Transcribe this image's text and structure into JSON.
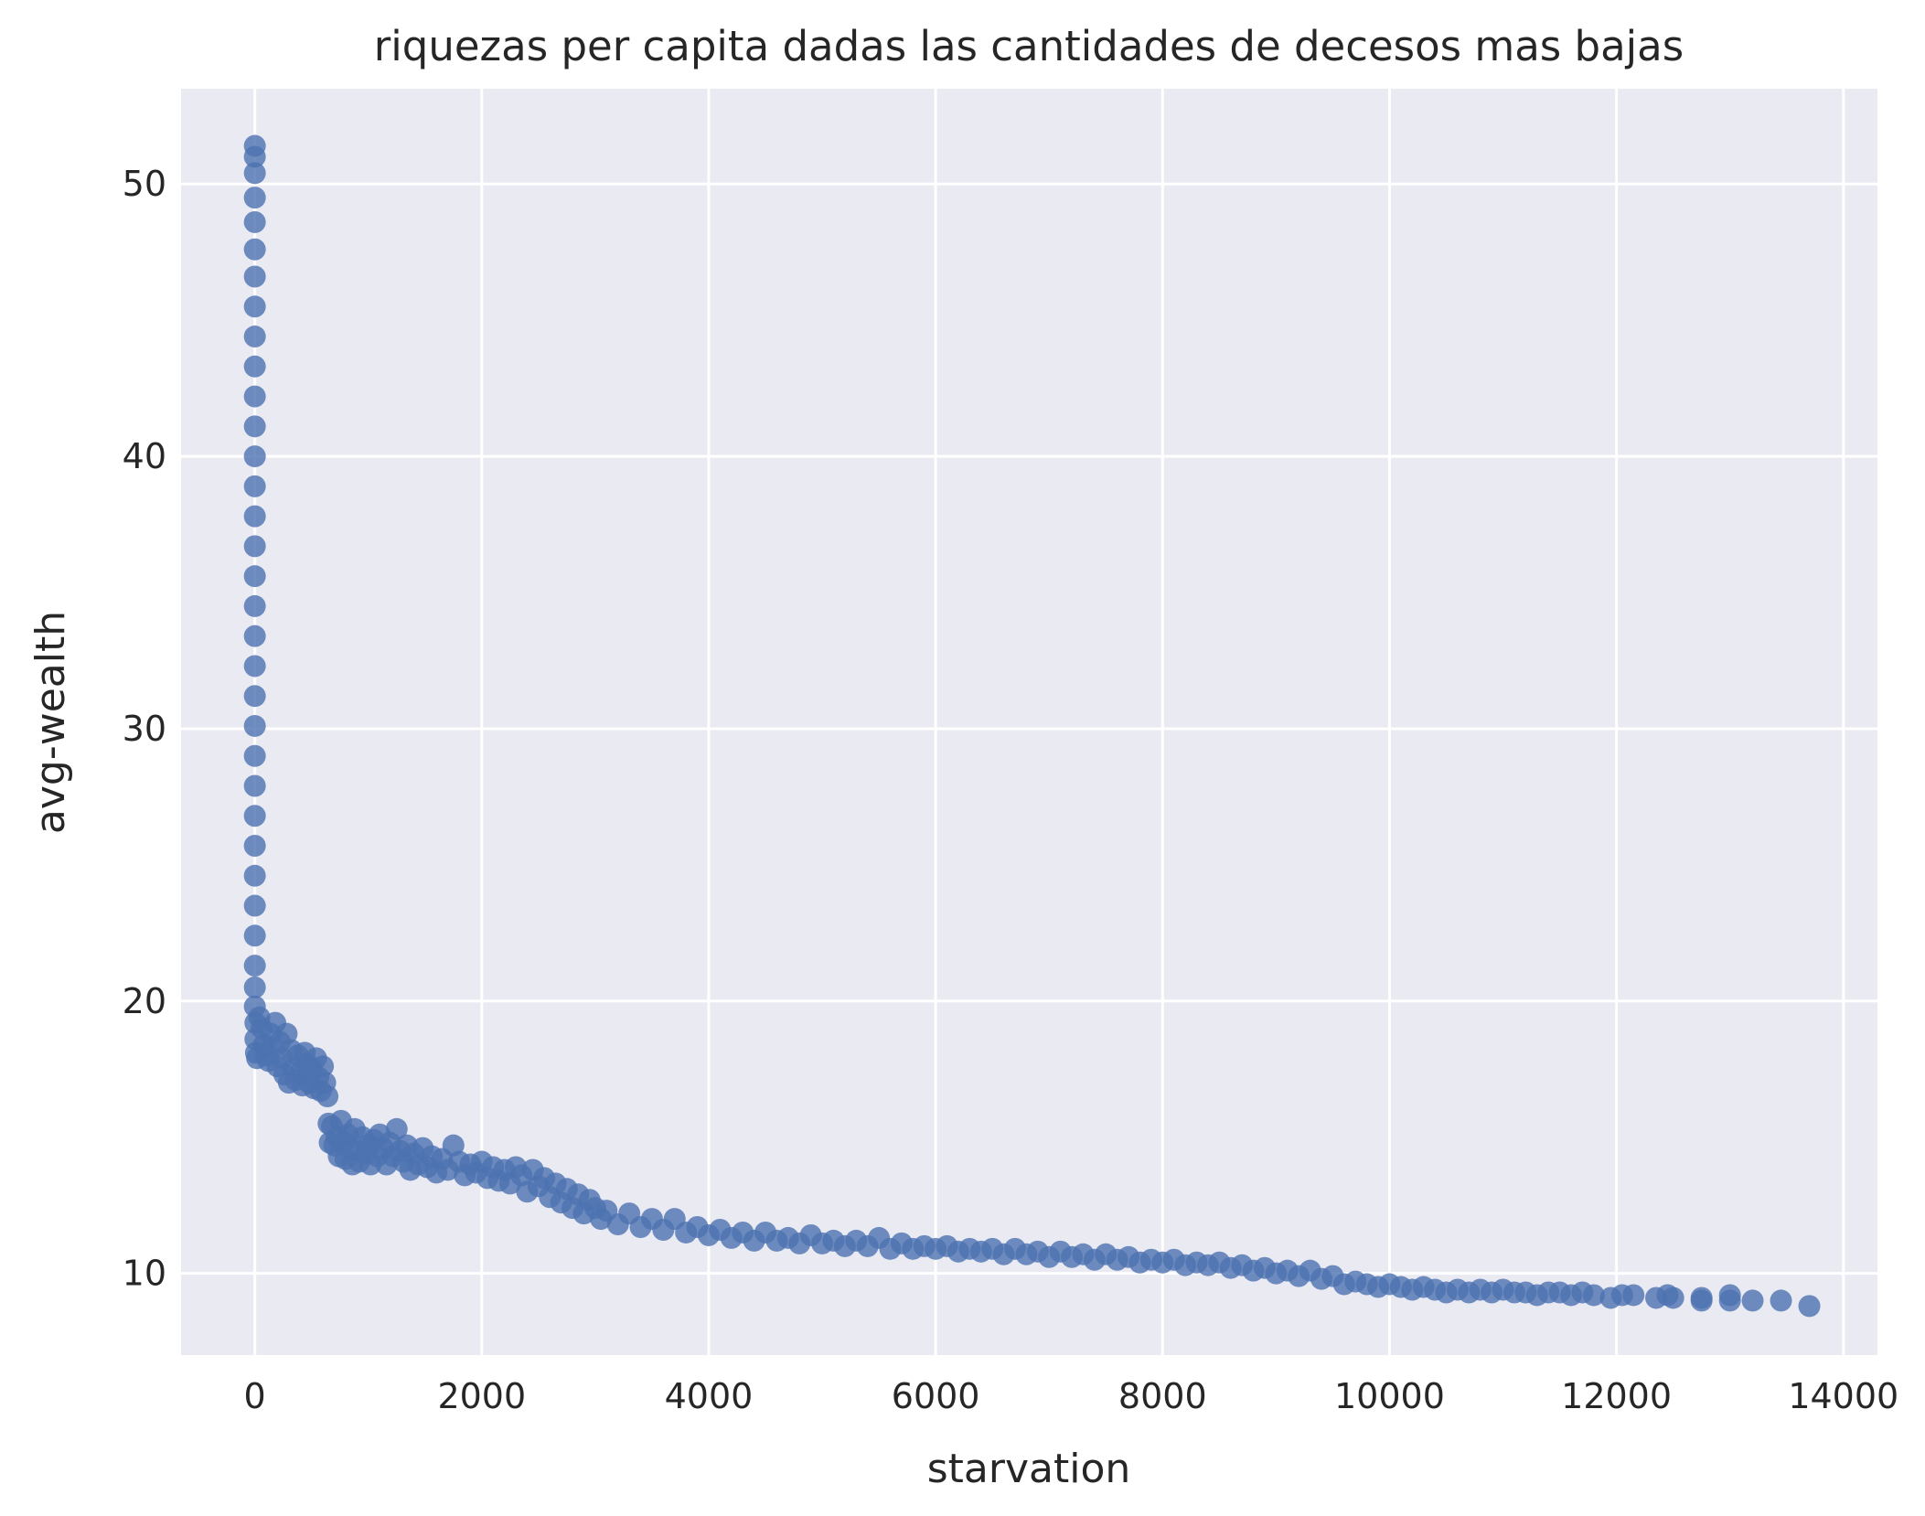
{
  "chart_data": {
    "type": "scatter",
    "title": "riquezas per capita dadas las cantidades de decesos mas bajas",
    "xlabel": "starvation",
    "ylabel": "avg-wealth",
    "xlim": [
      -650,
      14300
    ],
    "ylim": [
      7,
      53.5
    ],
    "xticks": [
      0,
      2000,
      4000,
      6000,
      8000,
      10000,
      12000,
      14000
    ],
    "yticks": [
      10,
      20,
      30,
      40,
      50
    ],
    "xtick_labels": [
      "0",
      "2000",
      "4000",
      "6000",
      "8000",
      "10000",
      "12000",
      "14000"
    ],
    "ytick_labels": [
      "10",
      "20",
      "30",
      "40",
      "50"
    ],
    "grid": true,
    "legend": "none",
    "colors": {
      "background": "#eaeaf2",
      "grid": "#ffffff",
      "marker": "#4c72b0",
      "text": "#262626"
    },
    "series": [
      {
        "points": [
          [
            0,
            51.4
          ],
          [
            0,
            51.0
          ],
          [
            0,
            50.4
          ],
          [
            0,
            49.5
          ],
          [
            0,
            48.6
          ],
          [
            0,
            47.6
          ],
          [
            0,
            46.6
          ],
          [
            0,
            45.5
          ],
          [
            0,
            44.4
          ],
          [
            0,
            43.3
          ],
          [
            0,
            42.2
          ],
          [
            0,
            41.1
          ],
          [
            0,
            40.0
          ],
          [
            0,
            38.9
          ],
          [
            0,
            37.8
          ],
          [
            0,
            36.7
          ],
          [
            0,
            35.6
          ],
          [
            0,
            34.5
          ],
          [
            0,
            33.4
          ],
          [
            0,
            32.3
          ],
          [
            0,
            31.2
          ],
          [
            0,
            30.1
          ],
          [
            0,
            29.0
          ],
          [
            0,
            27.9
          ],
          [
            0,
            26.8
          ],
          [
            0,
            25.7
          ],
          [
            0,
            24.6
          ],
          [
            0,
            23.5
          ],
          [
            0,
            22.4
          ],
          [
            0,
            21.3
          ],
          [
            0,
            20.5
          ],
          [
            0,
            19.8
          ],
          [
            5,
            19.2
          ],
          [
            5,
            18.6
          ],
          [
            10,
            18.1
          ],
          [
            20,
            17.9
          ],
          [
            40,
            19.4
          ],
          [
            60,
            19.0
          ],
          [
            80,
            18.4
          ],
          [
            100,
            18.0
          ],
          [
            120,
            17.8
          ],
          [
            140,
            18.8
          ],
          [
            160,
            18.3
          ],
          [
            180,
            19.2
          ],
          [
            200,
            17.6
          ],
          [
            220,
            18.5
          ],
          [
            240,
            17.9
          ],
          [
            260,
            17.3
          ],
          [
            280,
            18.8
          ],
          [
            300,
            17.0
          ],
          [
            320,
            18.2
          ],
          [
            340,
            17.5
          ],
          [
            360,
            17.1
          ],
          [
            380,
            18.0
          ],
          [
            400,
            17.4
          ],
          [
            420,
            16.9
          ],
          [
            440,
            18.1
          ],
          [
            460,
            17.7
          ],
          [
            480,
            17.0
          ],
          [
            500,
            17.5
          ],
          [
            520,
            16.8
          ],
          [
            540,
            17.9
          ],
          [
            560,
            17.2
          ],
          [
            580,
            16.7
          ],
          [
            600,
            17.6
          ],
          [
            620,
            17.0
          ],
          [
            640,
            16.5
          ],
          [
            650,
            15.5
          ],
          [
            660,
            14.8
          ],
          [
            680,
            15.4
          ],
          [
            700,
            14.7
          ],
          [
            720,
            15.0
          ],
          [
            740,
            14.3
          ],
          [
            760,
            15.6
          ],
          [
            780,
            14.8
          ],
          [
            800,
            14.2
          ],
          [
            820,
            15.1
          ],
          [
            840,
            14.6
          ],
          [
            860,
            14.0
          ],
          [
            880,
            15.3
          ],
          [
            900,
            14.5
          ],
          [
            920,
            14.1
          ],
          [
            950,
            15.0
          ],
          [
            980,
            14.4
          ],
          [
            1000,
            14.7
          ],
          [
            1020,
            14.0
          ],
          [
            1050,
            14.9
          ],
          [
            1080,
            14.3
          ],
          [
            1100,
            15.1
          ],
          [
            1130,
            14.6
          ],
          [
            1160,
            14.0
          ],
          [
            1190,
            14.8
          ],
          [
            1220,
            14.3
          ],
          [
            1250,
            15.3
          ],
          [
            1280,
            14.5
          ],
          [
            1310,
            14.1
          ],
          [
            1340,
            14.7
          ],
          [
            1370,
            13.8
          ],
          [
            1400,
            14.4
          ],
          [
            1440,
            14.0
          ],
          [
            1480,
            14.6
          ],
          [
            1520,
            13.9
          ],
          [
            1560,
            14.3
          ],
          [
            1600,
            13.7
          ],
          [
            1650,
            14.2
          ],
          [
            1700,
            13.8
          ],
          [
            1750,
            14.7
          ],
          [
            1800,
            14.1
          ],
          [
            1850,
            13.6
          ],
          [
            1900,
            14.0
          ],
          [
            1950,
            13.7
          ],
          [
            2000,
            14.1
          ],
          [
            2050,
            13.5
          ],
          [
            2100,
            13.9
          ],
          [
            2150,
            13.4
          ],
          [
            2200,
            13.8
          ],
          [
            2250,
            13.3
          ],
          [
            2300,
            13.9
          ],
          [
            2350,
            13.6
          ],
          [
            2400,
            13.0
          ],
          [
            2450,
            13.8
          ],
          [
            2500,
            13.2
          ],
          [
            2550,
            13.5
          ],
          [
            2600,
            12.8
          ],
          [
            2650,
            13.3
          ],
          [
            2700,
            12.6
          ],
          [
            2750,
            13.1
          ],
          [
            2800,
            12.4
          ],
          [
            2850,
            12.9
          ],
          [
            2900,
            12.2
          ],
          [
            2950,
            12.7
          ],
          [
            3000,
            12.4
          ],
          [
            3050,
            12.0
          ],
          [
            3100,
            12.3
          ],
          [
            3200,
            11.8
          ],
          [
            3300,
            12.2
          ],
          [
            3400,
            11.7
          ],
          [
            3500,
            12.0
          ],
          [
            3600,
            11.6
          ],
          [
            3700,
            12.0
          ],
          [
            3800,
            11.5
          ],
          [
            3900,
            11.7
          ],
          [
            4000,
            11.4
          ],
          [
            4100,
            11.6
          ],
          [
            4200,
            11.3
          ],
          [
            4300,
            11.5
          ],
          [
            4400,
            11.2
          ],
          [
            4500,
            11.5
          ],
          [
            4600,
            11.2
          ],
          [
            4700,
            11.3
          ],
          [
            4800,
            11.1
          ],
          [
            4900,
            11.4
          ],
          [
            5000,
            11.1
          ],
          [
            5100,
            11.2
          ],
          [
            5200,
            11.0
          ],
          [
            5300,
            11.2
          ],
          [
            5400,
            11.0
          ],
          [
            5500,
            11.3
          ],
          [
            5600,
            10.9
          ],
          [
            5700,
            11.1
          ],
          [
            5800,
            10.9
          ],
          [
            5900,
            11.0
          ],
          [
            6000,
            10.9
          ],
          [
            6100,
            11.0
          ],
          [
            6200,
            10.8
          ],
          [
            6300,
            10.9
          ],
          [
            6400,
            10.8
          ],
          [
            6500,
            10.9
          ],
          [
            6600,
            10.7
          ],
          [
            6700,
            10.9
          ],
          [
            6800,
            10.7
          ],
          [
            6900,
            10.8
          ],
          [
            7000,
            10.6
          ],
          [
            7100,
            10.8
          ],
          [
            7200,
            10.6
          ],
          [
            7300,
            10.7
          ],
          [
            7400,
            10.5
          ],
          [
            7500,
            10.7
          ],
          [
            7600,
            10.5
          ],
          [
            7700,
            10.6
          ],
          [
            7800,
            10.4
          ],
          [
            7900,
            10.5
          ],
          [
            8000,
            10.4
          ],
          [
            8100,
            10.5
          ],
          [
            8200,
            10.3
          ],
          [
            8300,
            10.4
          ],
          [
            8400,
            10.3
          ],
          [
            8500,
            10.4
          ],
          [
            8600,
            10.2
          ],
          [
            8700,
            10.3
          ],
          [
            8800,
            10.1
          ],
          [
            8900,
            10.2
          ],
          [
            9000,
            10.0
          ],
          [
            9100,
            10.1
          ],
          [
            9200,
            9.9
          ],
          [
            9300,
            10.1
          ],
          [
            9400,
            9.8
          ],
          [
            9500,
            9.9
          ],
          [
            9600,
            9.6
          ],
          [
            9700,
            9.7
          ],
          [
            9800,
            9.6
          ],
          [
            9900,
            9.5
          ],
          [
            10000,
            9.6
          ],
          [
            10100,
            9.5
          ],
          [
            10200,
            9.4
          ],
          [
            10300,
            9.5
          ],
          [
            10400,
            9.4
          ],
          [
            10500,
            9.3
          ],
          [
            10600,
            9.4
          ],
          [
            10700,
            9.3
          ],
          [
            10800,
            9.4
          ],
          [
            10900,
            9.3
          ],
          [
            11000,
            9.4
          ],
          [
            11100,
            9.3
          ],
          [
            11200,
            9.3
          ],
          [
            11300,
            9.2
          ],
          [
            11400,
            9.3
          ],
          [
            11500,
            9.3
          ],
          [
            11600,
            9.2
          ],
          [
            11700,
            9.3
          ],
          [
            11800,
            9.2
          ],
          [
            11950,
            9.1
          ],
          [
            12050,
            9.2
          ],
          [
            12150,
            9.2
          ],
          [
            12350,
            9.1
          ],
          [
            12450,
            9.2
          ],
          [
            12500,
            9.1
          ],
          [
            12750,
            9.0
          ],
          [
            12750,
            9.1
          ],
          [
            13000,
            9.2
          ],
          [
            13000,
            9.0
          ],
          [
            13200,
            9.0
          ],
          [
            13450,
            9.0
          ],
          [
            13700,
            8.8
          ]
        ]
      }
    ]
  }
}
